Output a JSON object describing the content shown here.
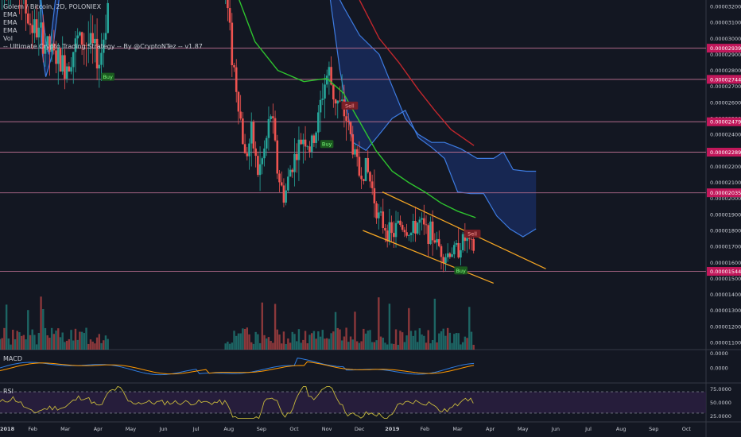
{
  "legend": {
    "title": "Golem / Bitcoin, 2D, POLONIEX",
    "ema1": "EMA",
    "ema2": "EMA",
    "ema3": "EMA",
    "vol": "Vol",
    "strategy": "-- Ultimate Crypto Trading Strategy -- By @CryptoNTez -- v1.87"
  },
  "panes": {
    "macd_label": "MACD",
    "rsi_label": "RSI"
  },
  "chart_data": {
    "type": "candlestick",
    "price_axis": {
      "min": 1.055e-05,
      "max": 3.24e-05,
      "ticks": [
        "0.00003200",
        "0.00003100",
        "0.00003000",
        "0.00002900",
        "0.00002800",
        "0.00002700",
        "0.00002600",
        "0.00002500",
        "0.00002400",
        "0.00002300",
        "0.00002200",
        "0.00002100",
        "0.00002000",
        "0.00001900",
        "0.00001800",
        "0.00001700",
        "0.00001600",
        "0.00001500",
        "0.00001400",
        "0.00001300",
        "0.00001200",
        "0.00001100"
      ]
    },
    "horizontal_levels": [
      {
        "value": 2.939e-05,
        "label": "0.00002939"
      },
      {
        "value": 2.744e-05,
        "label": "0.00002744"
      },
      {
        "value": 2.479e-05,
        "label": "0.00002479"
      },
      {
        "value": 2.289e-05,
        "label": "0.00002289"
      },
      {
        "value": 2.035e-05,
        "label": "0.00002035"
      },
      {
        "value": 1.544e-05,
        "label": "0.00001544"
      }
    ],
    "x_axis": {
      "labels": [
        "2018",
        "Feb",
        "Mar",
        "Apr",
        "May",
        "Jun",
        "Jul",
        "Aug",
        "Sep",
        "Oct",
        "Nov",
        "Dec",
        "2019",
        "Feb",
        "Mar",
        "Apr",
        "May",
        "Jun",
        "Jul",
        "Aug",
        "Sep",
        "Oct"
      ],
      "t_range": [
        0,
        21.6
      ]
    },
    "price_path": [
      [
        0,
        3.3e-05
      ],
      [
        0.4,
        3.45e-05
      ],
      [
        0.9,
        3.1e-05
      ],
      [
        1.3,
        3e-05
      ],
      [
        1.6,
        2.9e-05
      ],
      [
        2.0,
        2.82e-05
      ],
      [
        2.4,
        3e-05
      ],
      [
        2.8,
        2.95e-05
      ],
      [
        3.05,
        2.85e-05
      ],
      [
        3.2,
        3.05e-05
      ],
      [
        3.35,
        3.3e-05
      ],
      [
        6.9,
        3.3e-05
      ],
      [
        7.0,
        3.1e-05
      ],
      [
        7.1,
        2.9e-05
      ],
      [
        7.3,
        2.6e-05
      ],
      [
        7.5,
        2.25e-05
      ],
      [
        7.7,
        2.4e-05
      ],
      [
        7.9,
        2.15e-05
      ],
      [
        8.1,
        2.3e-05
      ],
      [
        8.3,
        2.55e-05
      ],
      [
        8.5,
        2.15e-05
      ],
      [
        8.7,
        2e-05
      ],
      [
        8.9,
        2.2e-05
      ],
      [
        9.1,
        2.3e-05
      ],
      [
        9.3,
        2.4e-05
      ],
      [
        9.5,
        2.3e-05
      ],
      [
        9.7,
        2.45e-05
      ],
      [
        9.9,
        2.7e-05
      ],
      [
        10.05,
        2.8e-05
      ],
      [
        10.2,
        2.65e-05
      ],
      [
        10.4,
        2.58e-05
      ],
      [
        10.6,
        2.5e-05
      ],
      [
        10.8,
        2.32e-05
      ],
      [
        11.0,
        2.15e-05
      ],
      [
        11.2,
        2.2e-05
      ],
      [
        11.4,
        2.05e-05
      ],
      [
        11.6,
        1.87e-05
      ],
      [
        11.8,
        1.82e-05
      ],
      [
        12.0,
        1.76e-05
      ],
      [
        12.2,
        1.85e-05
      ],
      [
        12.4,
        1.81e-05
      ],
      [
        12.6,
        1.78e-05
      ],
      [
        12.8,
        1.86e-05
      ],
      [
        13.0,
        1.8e-05
      ],
      [
        13.2,
        1.78e-05
      ],
      [
        13.4,
        1.71e-05
      ],
      [
        13.6,
        1.64e-05
      ],
      [
        13.8,
        1.67e-05
      ],
      [
        14.0,
        1.68e-05
      ],
      [
        14.2,
        1.75e-05
      ],
      [
        14.4,
        1.7e-05
      ],
      [
        14.55,
        1.67e-05
      ]
    ],
    "ema_green": [
      [
        7.3,
        3.25e-05
      ],
      [
        7.8,
        2.98e-05
      ],
      [
        8.5,
        2.8e-05
      ],
      [
        9.3,
        2.73e-05
      ],
      [
        10.0,
        2.75e-05
      ],
      [
        10.5,
        2.66e-05
      ],
      [
        11.0,
        2.48e-05
      ],
      [
        11.5,
        2.3e-05
      ],
      [
        12.0,
        2.17e-05
      ],
      [
        12.5,
        2.1e-05
      ],
      [
        13.0,
        2.04e-05
      ],
      [
        13.5,
        1.97e-05
      ],
      [
        14.0,
        1.92e-05
      ],
      [
        14.55,
        1.88e-05
      ]
    ],
    "ema_red": [
      [
        11.0,
        3.24e-05
      ],
      [
        11.6,
        3e-05
      ],
      [
        12.2,
        2.85e-05
      ],
      [
        12.8,
        2.68e-05
      ],
      [
        13.3,
        2.55e-05
      ],
      [
        13.8,
        2.43e-05
      ],
      [
        14.5,
        2.33e-05
      ]
    ],
    "cloud_upper": [
      [
        1.2,
        3.35e-05
      ],
      [
        1.4,
        2.98e-05
      ],
      [
        1.5,
        2.9e-05
      ],
      [
        1.7,
        3.25e-05
      ],
      [
        1.9,
        3.4e-05
      ],
      [
        10.0,
        3.4e-05
      ],
      [
        10.5,
        3.2e-05
      ],
      [
        11.0,
        3.02e-05
      ],
      [
        11.6,
        2.9e-05
      ],
      [
        12.0,
        2.7e-05
      ],
      [
        12.4,
        2.5e-05
      ],
      [
        12.8,
        2.4e-05
      ],
      [
        13.2,
        2.35e-05
      ],
      [
        13.6,
        2.35e-05
      ],
      [
        14.1,
        2.31e-05
      ],
      [
        14.6,
        2.25e-05
      ],
      [
        15.1,
        2.25e-05
      ],
      [
        15.4,
        2.29e-05
      ],
      [
        15.7,
        2.18e-05
      ],
      [
        16.1,
        2.17e-05
      ],
      [
        16.4,
        2.17e-05
      ]
    ],
    "cloud_lower": [
      [
        1.2,
        3.35e-05
      ],
      [
        1.3,
        2.9e-05
      ],
      [
        1.4,
        2.76e-05
      ],
      [
        1.6,
        2.9e-05
      ],
      [
        1.9,
        3.4e-05
      ],
      [
        10.0,
        3.4e-05
      ],
      [
        10.4,
        2.8e-05
      ],
      [
        10.8,
        2.35e-05
      ],
      [
        11.2,
        2.3e-05
      ],
      [
        11.6,
        2.4e-05
      ],
      [
        12.0,
        2.5e-05
      ],
      [
        12.4,
        2.55e-05
      ],
      [
        12.8,
        2.38e-05
      ],
      [
        13.2,
        2.32e-05
      ],
      [
        13.6,
        2.25e-05
      ],
      [
        14.0,
        2.04e-05
      ],
      [
        14.4,
        2.03e-05
      ],
      [
        14.8,
        2.03e-05
      ],
      [
        15.2,
        1.89e-05
      ],
      [
        15.6,
        1.81e-05
      ],
      [
        16.0,
        1.76e-05
      ],
      [
        16.4,
        1.81e-05
      ]
    ],
    "channel_upper": [
      [
        11.7,
        2.04e-05
      ],
      [
        16.7,
        1.56e-05
      ]
    ],
    "channel_lower": [
      [
        11.1,
        1.8e-05
      ],
      [
        15.1,
        1.47e-05
      ]
    ],
    "signals": [
      {
        "label": "Buy",
        "t": 3.3,
        "value": 2.76e-05,
        "kind": "buy"
      },
      {
        "label": "Sell",
        "t": 10.7,
        "value": 2.58e-05,
        "kind": "sell"
      },
      {
        "label": "Buy",
        "t": 10.0,
        "value": 2.34e-05,
        "kind": "buy"
      },
      {
        "label": "Sell",
        "t": 14.45,
        "value": 1.78e-05,
        "kind": "sell"
      },
      {
        "label": "Buy",
        "t": 14.1,
        "value": 1.55e-05,
        "kind": "buy"
      }
    ],
    "macd_axis": [
      "0.0000",
      "0.0000"
    ],
    "rsi_axis": [
      "75.0000",
      "50.0000",
      "25.0000"
    ],
    "rsi_bands": [
      70,
      30
    ],
    "rsi_range": [
      15,
      85
    ],
    "grid": false,
    "colors": {
      "background": "#131722",
      "up": "#26a69a",
      "down": "#ef5350",
      "ema_green": "#2ec42e",
      "ema_red": "#c1272d",
      "cloud": "#2962ff",
      "channel": "#f5a623",
      "levels": "#b06a8a",
      "macd": "#2f7de1",
      "signal": "#ff9800",
      "rsi": "#c8b93c",
      "rsi_fill": "#2a1f3f"
    }
  }
}
